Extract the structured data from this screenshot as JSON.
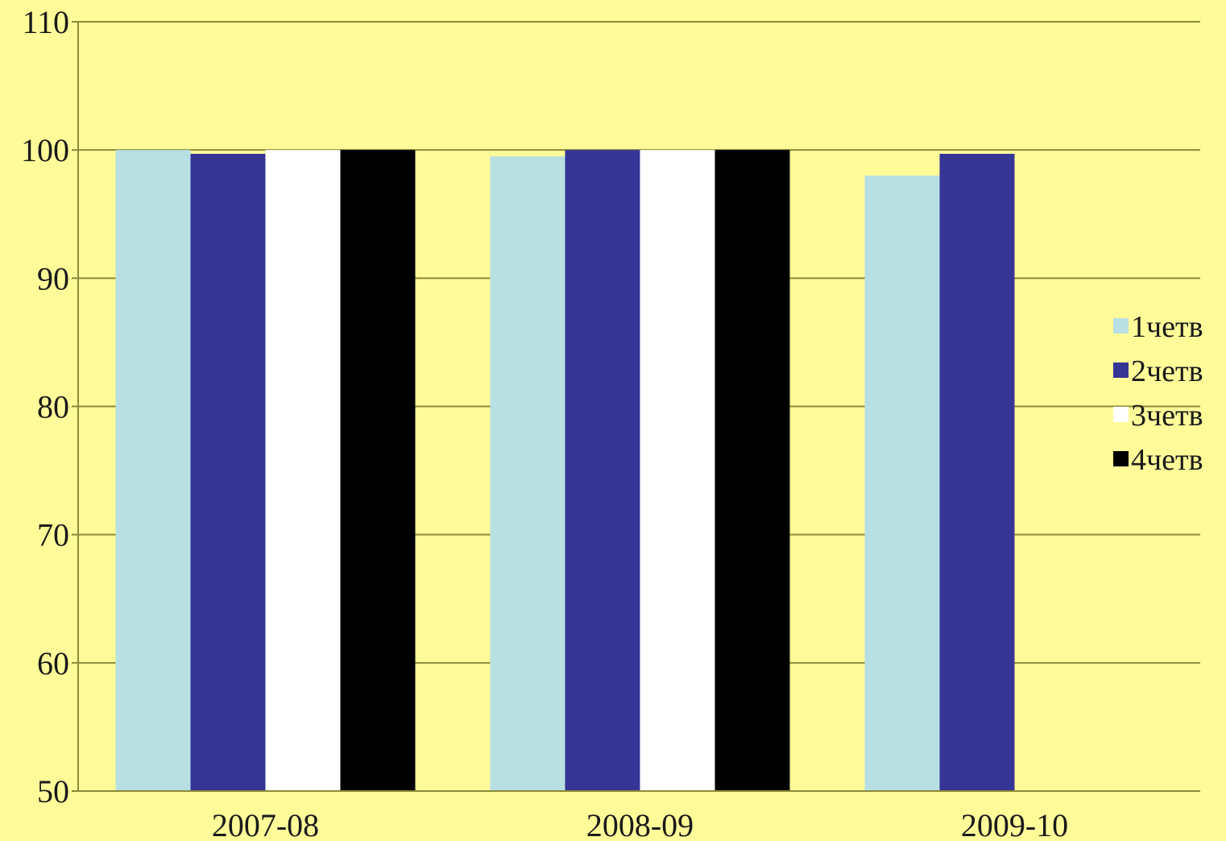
{
  "chart_data": {
    "type": "bar",
    "title": "",
    "xlabel": "",
    "ylabel": "",
    "categories": [
      "2007-08",
      "2008-09",
      "2009-10"
    ],
    "series": [
      {
        "name": "1четв",
        "color": "#B8DFE2",
        "values": [
          100,
          99.5,
          98
        ]
      },
      {
        "name": "2четв",
        "color": "#353596",
        "values": [
          99.7,
          100,
          99.7
        ]
      },
      {
        "name": "3четв",
        "color": "#FFFFFF",
        "values": [
          100,
          100,
          null
        ]
      },
      {
        "name": "4четв",
        "color": "#000000",
        "values": [
          100,
          100,
          null
        ]
      }
    ],
    "ylim": [
      50,
      110
    ],
    "yticks": [
      50,
      60,
      70,
      80,
      90,
      100,
      110
    ],
    "grid": true,
    "legend_position": "right",
    "background_color": "#FFFB99",
    "gridline_color": "#8B8B3A"
  }
}
